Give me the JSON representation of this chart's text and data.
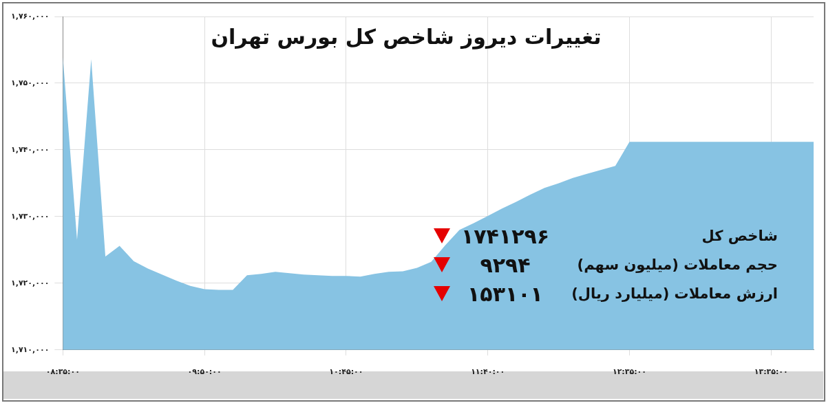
{
  "chart_data": {
    "type": "area",
    "title": "تغییرات دیروز شاخص کل بورس تهران",
    "categories": [
      "۰۸:۳۵:۰۰",
      null,
      null,
      null,
      null,
      null,
      null,
      null,
      null,
      null,
      "۰۹:۵۰:۰۰",
      null,
      null,
      null,
      null,
      null,
      null,
      null,
      null,
      null,
      "۱۰:۴۵:۰۰",
      null,
      null,
      null,
      null,
      null,
      null,
      null,
      null,
      null,
      "۱۱:۴۰:۰۰",
      null,
      null,
      null,
      null,
      null,
      null,
      null,
      null,
      null,
      "۱۲:۳۵:۰۰",
      null,
      null,
      null,
      null,
      null,
      null,
      null,
      null,
      null,
      "۱۳:۳۵:۰۰",
      null,
      null,
      null
    ],
    "series": [
      {
        "color": "#87c3e3",
        "values": [
          1753900,
          1726500,
          1753600,
          1724000,
          1725600,
          1723300,
          1722200,
          1721300,
          1720400,
          1719600,
          1719100,
          1719000,
          1719000,
          1721200,
          1721400,
          1721700,
          1721500,
          1721300,
          1721200,
          1721100,
          1721100,
          1721000,
          1721400,
          1721700,
          1721800,
          1722300,
          1723200,
          1725700,
          1728000,
          1729000,
          1730100,
          1731200,
          1732200,
          1733300,
          1734300,
          1735000,
          1735800,
          1736400,
          1737000,
          1737600,
          1741200,
          1741200,
          1741200,
          1741200,
          1741200,
          1741200,
          1741200,
          1741200,
          1741200,
          1741200,
          1741200,
          1741200,
          1741200,
          1741200
        ]
      }
    ],
    "ylim": [
      1710000,
      1760000
    ],
    "yticks": [
      {
        "value": 1710000,
        "label": "۱,۷۱۰,۰۰۰"
      },
      {
        "value": 1720000,
        "label": "۱,۷۲۰,۰۰۰"
      },
      {
        "value": 1730000,
        "label": "۱,۷۳۰,۰۰۰"
      },
      {
        "value": 1740000,
        "label": "۱,۷۴۰,۰۰۰"
      },
      {
        "value": 1750000,
        "label": "۱,۷۵۰,۰۰۰"
      },
      {
        "value": 1760000,
        "label": "۱,۷۶۰,۰۰۰"
      }
    ],
    "grid": true,
    "annotations": [
      "شاخص کل",
      "۱۷۴۱۲۹۶",
      "حجم معاملات (میلیون سهم)",
      "۹۲۹۴",
      "ارزش معاملات (میلیارد ریال)",
      "۱۵۳۱۰۱"
    ]
  }
}
